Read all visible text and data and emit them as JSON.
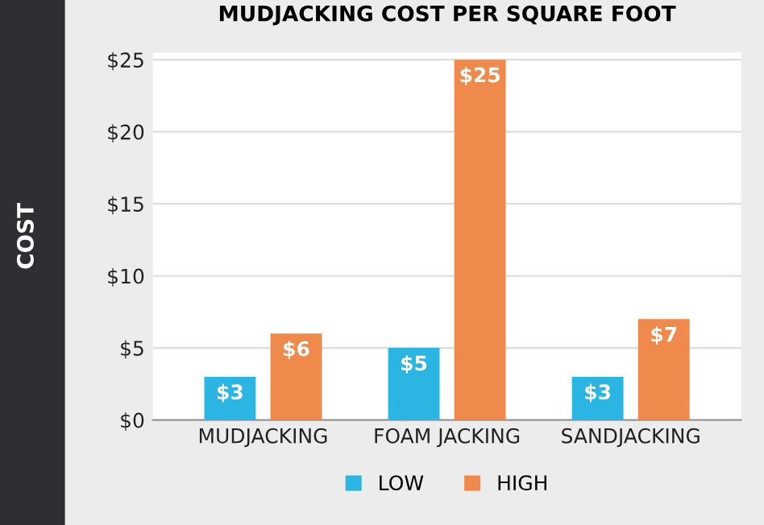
{
  "chart_data": {
    "type": "bar",
    "title": "MUDJACKING COST PER SQUARE FOOT",
    "ylabel": "COST",
    "categories": [
      "MUDJACKING",
      "FOAM JACKING",
      "SANDJACKING"
    ],
    "series": [
      {
        "name": "LOW",
        "color": "#2bb5e2",
        "values": [
          3,
          5,
          3
        ],
        "value_labels": [
          "$3",
          "$5",
          "$3"
        ]
      },
      {
        "name": "HIGH",
        "color": "#ef8a4c",
        "values": [
          6,
          25,
          7
        ],
        "value_labels": [
          "$6",
          "$25",
          "$7"
        ]
      }
    ],
    "ylim": [
      0,
      25.5
    ],
    "yticks": [
      {
        "value": 0,
        "label": "$0"
      },
      {
        "value": 5,
        "label": "$5"
      },
      {
        "value": 10,
        "label": "$10"
      },
      {
        "value": 15,
        "label": "$15"
      },
      {
        "value": 20,
        "label": "$20"
      },
      {
        "value": 25,
        "label": "$25"
      }
    ],
    "grid": "y",
    "legend": "bottom"
  }
}
